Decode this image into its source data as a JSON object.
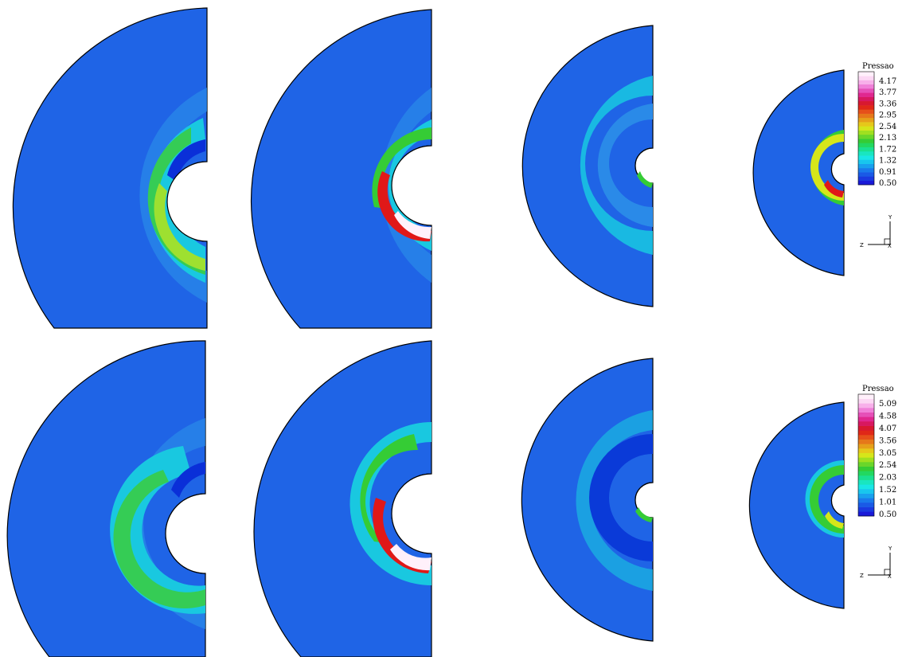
{
  "legends": [
    {
      "title": "Pressao",
      "ticks": [
        "4.17",
        "3.77",
        "3.36",
        "2.95",
        "2.54",
        "2.13",
        "1.72",
        "1.32",
        "0.91",
        "0.50"
      ]
    },
    {
      "title": "Pressao",
      "ticks": [
        "5.09",
        "4.58",
        "4.07",
        "3.56",
        "3.05",
        "2.54",
        "2.03",
        "1.52",
        "1.01",
        "0.50"
      ]
    }
  ],
  "axes": {
    "y_label": "Y",
    "z_label": "Z",
    "x_label": "X"
  },
  "colors": {
    "background_field": "#1f64e6",
    "low": "#0a1fd8",
    "cyan": "#19e6e6",
    "green": "#35cc35",
    "yellow": "#d6e61a",
    "red": "#e01818",
    "white": "#fff0fa"
  }
}
